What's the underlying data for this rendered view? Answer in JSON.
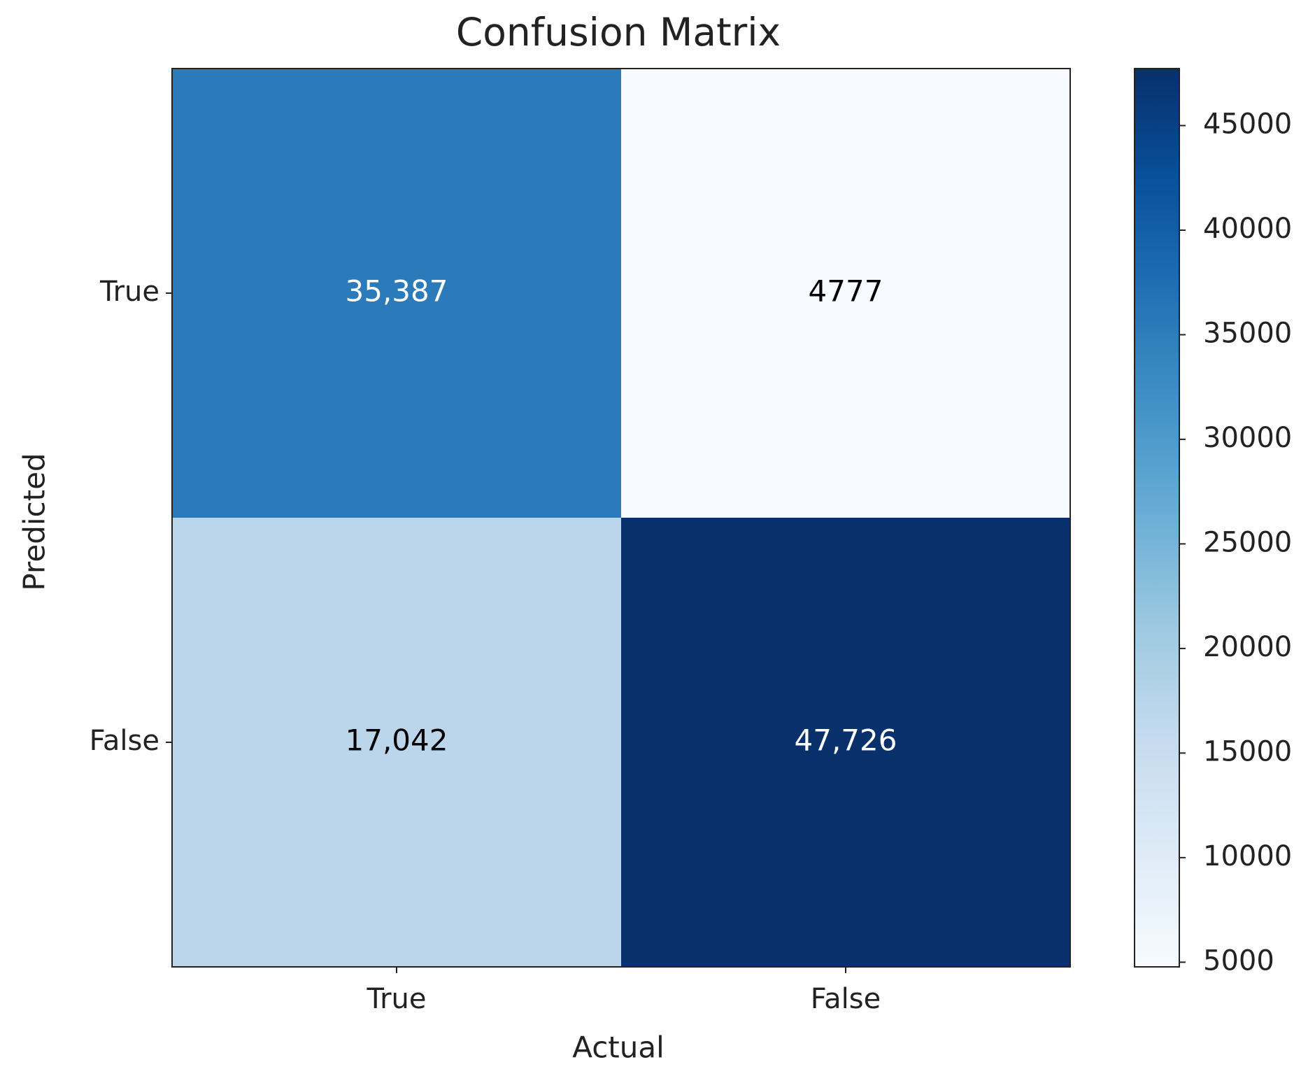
{
  "chart_data": {
    "type": "heatmap",
    "title": "Confusion Matrix",
    "x_label": "Actual",
    "y_label": "Predicted",
    "x_categories": [
      "True",
      "False"
    ],
    "y_categories": [
      "True",
      "False"
    ],
    "values": [
      [
        35387,
        4777
      ],
      [
        17042,
        47726
      ]
    ],
    "value_labels": [
      [
        "35,387",
        "4777"
      ],
      [
        "17,042",
        "47,726"
      ]
    ],
    "colormap": "Blues",
    "clim": [
      4777,
      47726
    ],
    "colorbar_ticks": [
      5000,
      10000,
      15000,
      20000,
      25000,
      30000,
      35000,
      40000,
      45000
    ]
  }
}
